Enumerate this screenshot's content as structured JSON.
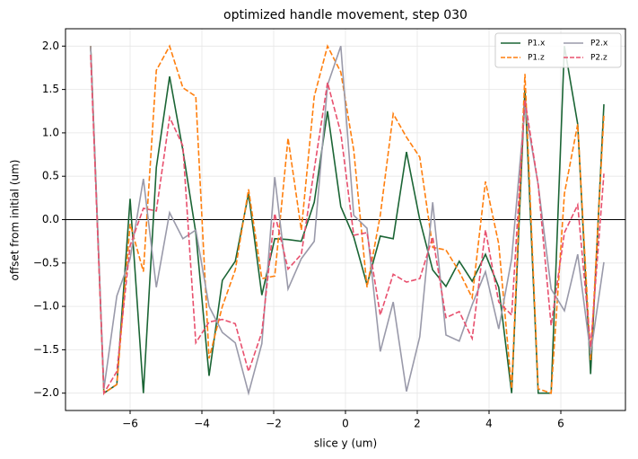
{
  "chart_data": {
    "type": "line",
    "title": "optimized handle movement, step 030",
    "xlabel": "slice y (um)",
    "ylabel": "offset from initial (um)",
    "x": [
      -7.1,
      -6.73,
      -6.37,
      -6.0,
      -5.63,
      -5.27,
      -4.9,
      -4.53,
      -4.17,
      -3.8,
      -3.43,
      -3.07,
      -2.7,
      -2.33,
      -1.97,
      -1.6,
      -1.23,
      -0.87,
      -0.5,
      -0.13,
      0.23,
      0.6,
      0.97,
      1.33,
      1.7,
      2.07,
      2.43,
      2.8,
      3.17,
      3.53,
      3.9,
      4.27,
      4.63,
      5.0,
      5.37,
      5.73,
      6.1,
      6.47,
      6.83,
      7.2
    ],
    "series": [
      {
        "name": "P1.x",
        "color": "#1b6535",
        "linestyle": "solid",
        "values": [
          2.0,
          -2.0,
          -1.9,
          0.24,
          -2.0,
          0.6,
          1.65,
          0.8,
          -0.15,
          -1.8,
          -0.7,
          -0.48,
          0.3,
          -0.87,
          -0.22,
          -0.23,
          -0.25,
          0.2,
          1.25,
          0.15,
          -0.2,
          -0.75,
          -0.19,
          -0.22,
          0.78,
          0.0,
          -0.58,
          -0.77,
          -0.48,
          -0.71,
          -0.4,
          -0.78,
          -2.0,
          1.5,
          -2.0,
          -2.0,
          2.0,
          1.1,
          -1.78,
          1.33
        ]
      },
      {
        "name": "P1.z",
        "color": "#ff7f0e",
        "linestyle": "dashed",
        "values": [
          2.0,
          -2.0,
          -1.9,
          -0.05,
          -0.6,
          1.72,
          2.0,
          1.52,
          1.42,
          -1.6,
          -1.0,
          -0.58,
          0.35,
          -0.68,
          -0.65,
          0.94,
          -0.12,
          1.42,
          2.0,
          1.7,
          0.8,
          -0.78,
          0.05,
          1.22,
          0.95,
          0.72,
          -0.32,
          -0.35,
          -0.6,
          -0.9,
          0.44,
          -0.28,
          -1.95,
          1.68,
          -1.95,
          -2.0,
          0.3,
          1.1,
          -1.62,
          1.2
        ]
      },
      {
        "name": "P2.x",
        "color": "#9a9aaa",
        "linestyle": "solid",
        "values": [
          2.0,
          -1.95,
          -0.88,
          -0.45,
          0.47,
          -0.78,
          0.08,
          -0.22,
          -0.12,
          -1.0,
          -1.3,
          -1.42,
          -2.0,
          -1.43,
          0.49,
          -0.8,
          -0.45,
          -0.25,
          1.55,
          2.0,
          0.05,
          -0.1,
          -1.52,
          -0.95,
          -1.98,
          -1.35,
          0.2,
          -1.33,
          -1.4,
          -0.98,
          -0.6,
          -1.26,
          -0.45,
          1.3,
          0.4,
          -0.8,
          -1.05,
          -0.4,
          -1.55,
          -0.49
        ]
      },
      {
        "name": "P2.z",
        "color": "#e8506e",
        "linestyle": "dashed",
        "values": [
          1.9,
          -2.0,
          -1.75,
          -0.3,
          0.13,
          0.1,
          1.18,
          0.85,
          -1.42,
          -1.18,
          -1.15,
          -1.2,
          -1.75,
          -1.3,
          0.07,
          -0.57,
          -0.4,
          0.58,
          1.58,
          1.0,
          -0.18,
          -0.15,
          -1.1,
          -0.63,
          -0.72,
          -0.68,
          -0.2,
          -1.13,
          -1.06,
          -1.37,
          -0.12,
          -0.95,
          -1.1,
          1.38,
          0.4,
          -1.22,
          -0.15,
          0.17,
          -1.47,
          0.53
        ]
      }
    ],
    "xlim": [
      -7.8,
      7.8
    ],
    "ylim": [
      -2.2,
      2.2
    ],
    "xticks": [
      {
        "value": -6,
        "label": "−6"
      },
      {
        "value": -4,
        "label": "−4"
      },
      {
        "value": -2,
        "label": "−2"
      },
      0,
      2,
      4,
      6
    ],
    "yticks": [
      {
        "value": -2,
        "label": "−2.0"
      },
      {
        "value": -1.5,
        "label": "−1.5"
      },
      {
        "value": -1,
        "label": "−1.0"
      },
      {
        "value": -0.5,
        "label": "−0.5"
      },
      {
        "value": 0,
        "label": "0.0"
      },
      0.5,
      {
        "value": 1,
        "label": "1.0"
      },
      1.5,
      {
        "value": 2,
        "label": "2.0"
      }
    ],
    "grid": true,
    "hline": 0,
    "legend": "upper right",
    "legend_columns": 2
  }
}
